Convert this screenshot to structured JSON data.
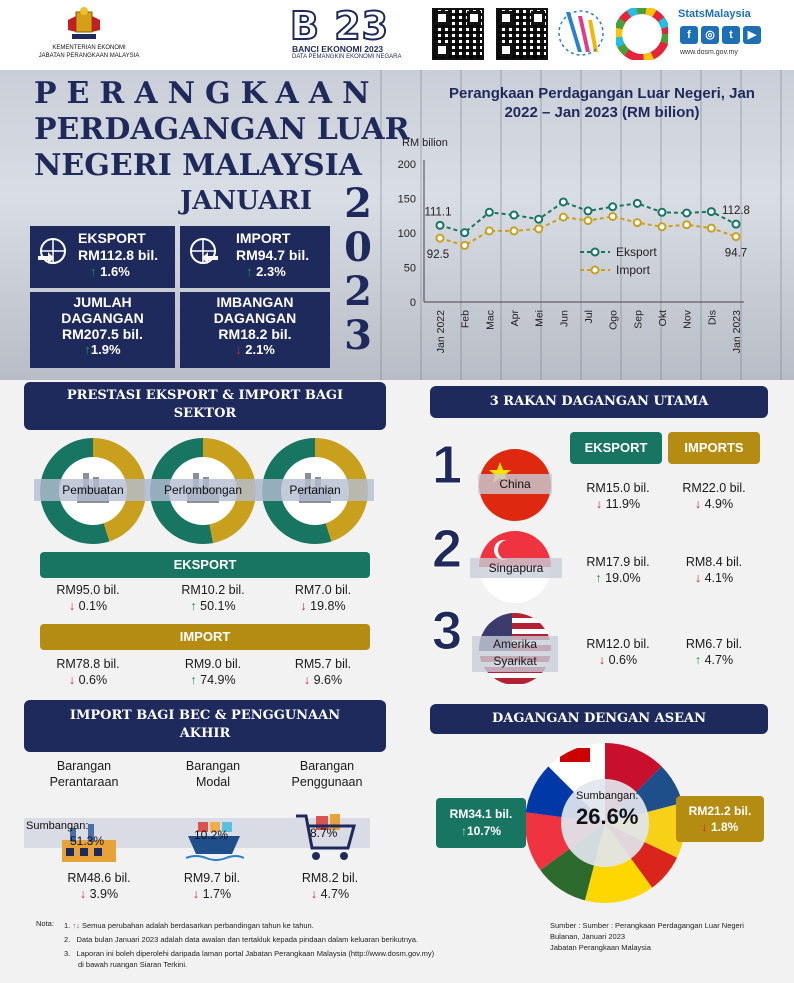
{
  "header": {
    "ministry_line1": "KEMENTERIAN EKONOMI",
    "ministry_line2": "JABATAN PERANGKAAN MALAYSIA",
    "banci_big": "B 23",
    "banci_line1": "BANCI EKONOMI 2023",
    "banci_line2": "DATA PEMANGKIN EKONOMI NEGARA",
    "stats_title": "StatsMalaysia",
    "website": "www.dosm.gov.my",
    "social": [
      "f",
      "◎",
      "t",
      "▶"
    ]
  },
  "title": {
    "line1": "PERANGKAAN",
    "line2": "PERDAGANGAN LUAR",
    "line3": "NEGERI MALAYSIA",
    "month": "JANUARI",
    "year_digits": [
      "2",
      "0",
      "2",
      "3"
    ]
  },
  "summary": {
    "eksport": {
      "label": "EKSPORT",
      "value": "RM112.8 bil.",
      "change": "1.6%",
      "direction": "up"
    },
    "import": {
      "label": "IMPORT",
      "value": "RM94.7 bil.",
      "change": "2.3%",
      "direction": "up"
    },
    "jumlah": {
      "label1": "JUMLAH",
      "label2": "DAGANGAN",
      "value": "RM207.5 bil.",
      "change": "1.9%",
      "direction": "up"
    },
    "imbangan": {
      "label1": "IMBANGAN",
      "label2": "DAGANGAN",
      "value": "RM18.2 bil.",
      "change": "2.1%",
      "direction": "down"
    }
  },
  "chart_data": {
    "type": "line",
    "title": "Perangkaan Perdagangan Luar Negeri, Jan 2022 – Jan 2023 (RM bilion)",
    "ylabel": "RM bilion",
    "ylim": [
      0,
      200
    ],
    "yticks": [
      0,
      50,
      100,
      150,
      200
    ],
    "categories": [
      "Jan 2022",
      "Feb",
      "Mac",
      "Apr",
      "Mei",
      "Jun",
      "Jul",
      "Ogo",
      "Sep",
      "Okt",
      "Nov",
      "Dis",
      "Jan 2023"
    ],
    "series": [
      {
        "name": "Eksport",
        "color": "#177562",
        "values": [
          111.1,
          100.5,
          130.0,
          126.0,
          120.0,
          145.0,
          132.0,
          138.0,
          143.0,
          130.0,
          129.0,
          131.0,
          112.8
        ]
      },
      {
        "name": "Import",
        "color": "#c9a01e",
        "values": [
          92.5,
          82.0,
          103.0,
          103.0,
          106.0,
          123.0,
          118.0,
          124.0,
          115.0,
          109.0,
          112.0,
          107.0,
          94.7
        ]
      }
    ],
    "data_labels": [
      {
        "series": "Eksport",
        "index": 0,
        "text": "111.1"
      },
      {
        "series": "Import",
        "index": 0,
        "text": "92.5"
      },
      {
        "series": "Eksport",
        "index": 12,
        "text": "112.8"
      },
      {
        "series": "Import",
        "index": 12,
        "text": "94.7"
      }
    ],
    "legend": "center-right",
    "grid": false
  },
  "sektor": {
    "title_line1": "PRESTASI EKSPORT & IMPORT BAGI",
    "title_line2": "SEKTOR",
    "donut_colors": {
      "eksport": "#177562",
      "import": "#c9a01e"
    },
    "items": [
      {
        "name": "Pembuatan",
        "eksport_share": 0.55,
        "exp_value": "RM95.0 bil.",
        "exp_change": "0.1%",
        "exp_dir": "down",
        "imp_value": "RM78.8 bil.",
        "imp_change": "0.6%",
        "imp_dir": "down"
      },
      {
        "name": "Perlombongan",
        "eksport_share": 0.53,
        "exp_value": "RM10.2 bil.",
        "exp_change": "50.1%",
        "exp_dir": "up",
        "imp_value": "RM9.0 bil.",
        "imp_change": "74.9%",
        "imp_dir": "up"
      },
      {
        "name": "Pertanian",
        "eksport_share": 0.55,
        "exp_value": "RM7.0 bil.",
        "exp_change": "19.8%",
        "exp_dir": "down",
        "imp_value": "RM5.7 bil.",
        "imp_change": "9.6%",
        "imp_dir": "down"
      }
    ],
    "eksport_label": "EKSPORT",
    "import_label": "IMPORT"
  },
  "rakan": {
    "title": "3 RAKAN DAGANGAN UTAMA",
    "eksport_label": "EKSPORT",
    "import_label": "IMPORTS",
    "items": [
      {
        "rank": "1",
        "country": "China",
        "exp_value": "RM15.0 bil.",
        "exp_change": "11.9%",
        "exp_dir": "down",
        "imp_value": "RM22.0 bil.",
        "imp_change": "4.9%",
        "imp_dir": "down"
      },
      {
        "rank": "2",
        "country": "Singapura",
        "exp_value": "RM17.9 bil.",
        "exp_change": "19.0%",
        "exp_dir": "up",
        "imp_value": "RM8.4 bil.",
        "imp_change": "4.1%",
        "imp_dir": "down"
      },
      {
        "rank": "3",
        "country1": "Amerika",
        "country2": "Syarikat",
        "exp_value": "RM12.0 bil.",
        "exp_change": "0.6%",
        "exp_dir": "down",
        "imp_value": "RM6.7 bil.",
        "imp_change": "4.7%",
        "imp_dir": "up"
      }
    ]
  },
  "bec": {
    "title_line1": "IMPORT BAGI BEC & PENGGUNAAN",
    "title_line2": "AKHIR",
    "sumbangan_label": "Sumbangan:",
    "items": [
      {
        "name1": "Barangan",
        "name2": "Perantaraan",
        "share": "51.3%",
        "value": "RM48.6 bil.",
        "change": "3.9%",
        "dir": "down"
      },
      {
        "name1": "Barangan",
        "name2": "Modal",
        "share": "10.2%",
        "value": "RM9.7 bil.",
        "change": "1.7%",
        "dir": "down"
      },
      {
        "name1": "Barangan",
        "name2": "Penggunaan",
        "share": "8.7%",
        "value": "RM8.2 bil.",
        "change": "4.7%",
        "dir": "down"
      }
    ]
  },
  "asean": {
    "title": "DAGANGAN DENGAN ASEAN",
    "sumbangan_label": "Sumbangan:",
    "share": "26.6%",
    "eksport_value": "RM34.1 bil.",
    "eksport_change": "10.7%",
    "eksport_dir": "up",
    "import_value": "RM21.2 bil.",
    "import_change": "1.8%",
    "import_dir": "down"
  },
  "notes": {
    "label": "Nota:",
    "n1": "Semua perubahan adalah berdasarkan perbandingan tahun ke tahun.",
    "n2": "Data bulan Januari 2023 adalah data awalan dan tertakluk kepada pindaan dalam keluaran berikutnya.",
    "n3a": "Laporan ini boleh diperolehi daripada laman portal Jabatan Perangkaan Malaysia (http://www.dosm.gov.my)",
    "n3b": "di bawah ruangan Siaran Terkini.",
    "source1": "Sumber : Sumber : Perangkaan Perdagangan Luar Negeri",
    "source2": "Bulanan, Januari 2023",
    "source3": "Jabatan Perangkaan Malaysia"
  }
}
